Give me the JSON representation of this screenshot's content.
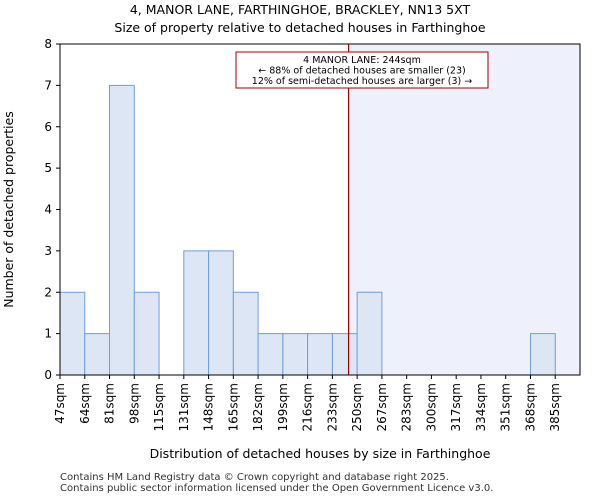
{
  "chart_data": {
    "type": "bar",
    "title": "4, MANOR LANE, FARTHINGHOE, BRACKLEY, NN13 5XT",
    "subtitle": "Size of property relative to detached houses in Farthinghoe",
    "xlabel": "Distribution of detached houses by size in Farthinghoe",
    "ylabel": "Number of detached properties",
    "categories": [
      "47sqm",
      "64sqm",
      "81sqm",
      "98sqm",
      "115sqm",
      "131sqm",
      "148sqm",
      "165sqm",
      "182sqm",
      "199sqm",
      "216sqm",
      "233sqm",
      "250sqm",
      "267sqm",
      "283sqm",
      "300sqm",
      "317sqm",
      "334sqm",
      "351sqm",
      "368sqm",
      "385sqm"
    ],
    "bin_edges": [
      47,
      64,
      81,
      98,
      115,
      131,
      148,
      165,
      182,
      199,
      216,
      233,
      250,
      267,
      283,
      300,
      317,
      334,
      351,
      368,
      385,
      402
    ],
    "values": [
      2,
      1,
      7,
      2,
      0,
      3,
      3,
      2,
      1,
      1,
      1,
      1,
      2,
      0,
      0,
      0,
      0,
      0,
      0,
      1,
      0
    ],
    "ylim": [
      0,
      8
    ],
    "yticks": [
      0,
      1,
      2,
      3,
      4,
      5,
      6,
      7,
      8
    ],
    "marker_value": 244,
    "annotation": {
      "line1": "4 MANOR LANE: 244sqm",
      "line2": "← 88% of detached houses are smaller (23)",
      "line3": "12% of semi-detached houses are larger (3) →"
    },
    "colors": {
      "bar_fill": "#dce6f5",
      "bar_edge": "#6f9fd8",
      "marker": "#a00000",
      "highlight_bg": "#eef1fb"
    }
  },
  "footer": {
    "line1": "Contains HM Land Registry data © Crown copyright and database right 2025.",
    "line2": "Contains public sector information licensed under the Open Government Licence v3.0."
  }
}
